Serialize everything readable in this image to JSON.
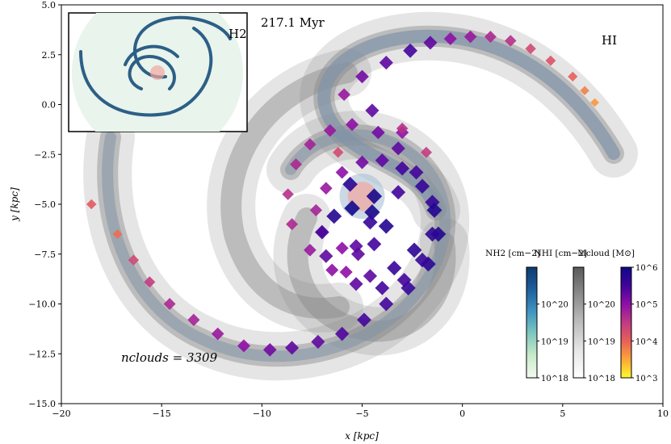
{
  "chart_data": {
    "type": "scatter",
    "x": [
      -18.5,
      -17.2,
      -16.4,
      -15.6,
      -14.6,
      -13.4,
      -12.2,
      -10.9,
      -9.6,
      -8.5,
      -7.2,
      -6.0,
      -4.9,
      -3.8,
      -2.7,
      -1.7,
      -1.2,
      -1.5,
      -2.3,
      -3.2,
      -4.2,
      -5.5,
      -6.6,
      -7.6,
      -8.3,
      -8.7,
      -8.5,
      -7.6,
      -6.5,
      -5.3,
      -4.0,
      -2.9,
      -2.0,
      -1.5,
      -1.4,
      -2.0,
      -3.0,
      -4.0,
      -5.0,
      -6.0,
      -6.8,
      -7.3,
      -7.0,
      -6.0,
      -5.2,
      -4.4,
      -3.8,
      -4.5,
      -5.5,
      -6.4,
      -7.0,
      -6.8,
      -5.8,
      -4.6,
      -3.4,
      -2.4,
      -3.0,
      -4.5,
      -5.9,
      -5.0,
      -3.8,
      -2.6,
      -1.6,
      -0.6,
      0.4,
      1.4,
      2.4,
      3.4,
      4.4,
      5.5,
      6.1,
      6.6,
      -3.0,
      -1.8,
      -6.2,
      -5.6,
      -4.4,
      -3.2,
      -5.3,
      -4.6
    ],
    "y": [
      -5.0,
      -6.5,
      -7.8,
      -8.9,
      -10.0,
      -10.8,
      -11.5,
      -12.1,
      -12.3,
      -12.2,
      -11.9,
      -11.5,
      -10.8,
      -10.0,
      -9.2,
      -8.0,
      -6.5,
      -4.9,
      -3.4,
      -2.2,
      -1.4,
      -1.0,
      -1.3,
      -2.0,
      -3.0,
      -4.5,
      -6.0,
      -7.3,
      -8.3,
      -9.0,
      -9.2,
      -8.8,
      -7.8,
      -6.5,
      -5.3,
      -4.1,
      -3.2,
      -2.8,
      -2.9,
      -3.4,
      -4.2,
      -5.3,
      -6.4,
      -7.2,
      -7.5,
      -7.0,
      -6.1,
      -5.4,
      -5.2,
      -5.6,
      -6.4,
      -7.6,
      -8.4,
      -8.6,
      -8.2,
      -7.3,
      -1.4,
      -0.3,
      0.5,
      1.4,
      2.1,
      2.7,
      3.1,
      3.3,
      3.4,
      3.4,
      3.2,
      2.8,
      2.2,
      1.4,
      0.7,
      0.1,
      -1.2,
      -2.4,
      -2.4,
      -4.0,
      -4.6,
      -4.4,
      -7.1,
      -5.9
    ],
    "mass": [
      12000.0,
      8000.0,
      20000.0,
      30000.0,
      50000.0,
      60000.0,
      80000.0,
      100000.0,
      150000.0,
      200000.0,
      200000.0,
      250000.0,
      300000.0,
      300000.0,
      400000.0,
      500000.0,
      600000.0,
      400000.0,
      300000.0,
      200000.0,
      150000.0,
      100000.0,
      80000.0,
      60000.0,
      50000.0,
      40000.0,
      50000.0,
      80000.0,
      100000.0,
      200000.0,
      300000.0,
      300000.0,
      400000.0,
      500000.0,
      600000.0,
      400000.0,
      300000.0,
      200000.0,
      150000.0,
      100000.0,
      80000.0,
      60000.0,
      50000.0,
      100000.0,
      200000.0,
      300000.0,
      600000.0,
      800000.0,
      900000.0,
      600000.0,
      300000.0,
      200000.0,
      100000.0,
      200000.0,
      400000.0,
      500000.0,
      100000.0,
      200000.0,
      80000.0,
      150000.0,
      200000.0,
      300000.0,
      200000.0,
      100000.0,
      80000.0,
      50000.0,
      40000.0,
      20000.0,
      15000.0,
      10000.0,
      6000.0,
      4000.0,
      40000.0,
      30000.0,
      20000.0,
      500000.0,
      800000.0,
      300000.0,
      200000.0,
      400000.0
    ],
    "xlabel": "x [kpc]",
    "ylabel": "y [kpc]",
    "xlim": [
      -20,
      10
    ],
    "ylim": [
      -15,
      5
    ],
    "xticks": [
      -20,
      -15,
      -10,
      -5,
      0,
      5,
      10
    ],
    "yticks": [
      5.0,
      2.5,
      0.0,
      -2.5,
      -5.0,
      -7.5,
      -10.0,
      -12.5,
      -15.0
    ],
    "xtick_labels": [
      "−20",
      "−15",
      "−10",
      "−5",
      "0",
      "5",
      "10"
    ],
    "ytick_labels": [
      "5.0",
      "2.5",
      "0.0",
      "−2.5",
      "−5.0",
      "−7.5",
      "−10.0",
      "−12.5",
      "−15.0"
    ],
    "annotations": {
      "time": "217.1 Myr",
      "hi_label": "HI",
      "inset_label": "H2",
      "n_clouds_label": "nclouds = 3309"
    },
    "colorbars": [
      {
        "label": "NH2 [cm−2]",
        "min": 1e+18,
        "max": 1e+21,
        "ticks": [
          "10^18",
          "10^19",
          "10^20"
        ],
        "colors": [
          "#f4fbf0",
          "#c8ebc9",
          "#7fc8c0",
          "#3f94c0",
          "#1f5f9c",
          "#0d3a6e"
        ]
      },
      {
        "label": "NHI [cm−2]",
        "min": 1e+18,
        "max": 1e+21,
        "ticks": [
          "10^18",
          "10^19",
          "10^20"
        ],
        "colors": [
          "#ffffff",
          "#e6e6e6",
          "#bdbdbd",
          "#8c8c8c",
          "#595959"
        ]
      },
      {
        "label": "Mcloud [M⊙]",
        "min": 1000.0,
        "max": 1000000.0,
        "ticks": [
          "10^3",
          "10^4",
          "10^5",
          "10^6"
        ],
        "colors": [
          "#fcfb2c",
          "#fca637",
          "#e85f5a",
          "#c03a83",
          "#8e0ea6",
          "#3f049c",
          "#0d0887"
        ]
      }
    ]
  },
  "colors": {
    "hi_gas": "#8a8a8a",
    "h2_inset_bg": "#e8f4ec",
    "h2_spiral": "#2d5f86",
    "bulge": "#f2a6a0"
  }
}
